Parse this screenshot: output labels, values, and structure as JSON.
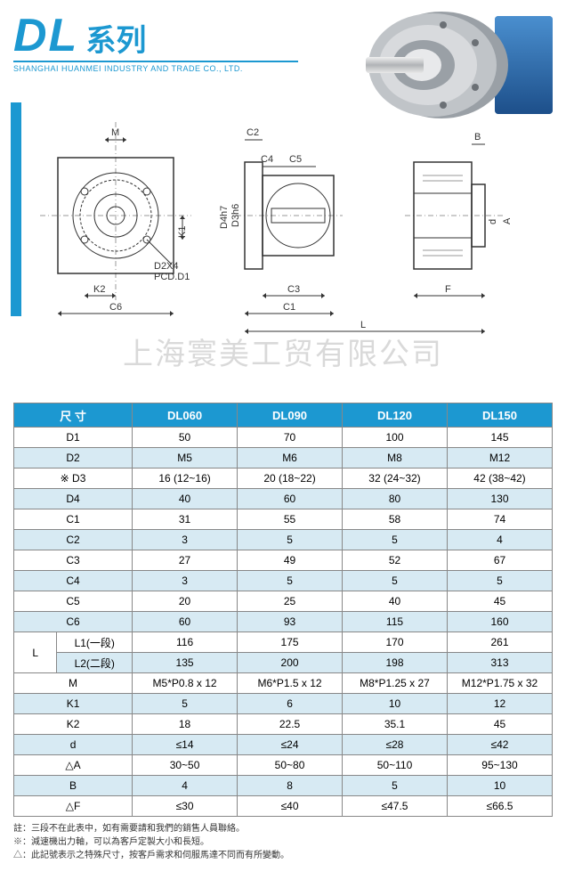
{
  "header": {
    "title_prefix": "DL",
    "title_series": "系列",
    "subtitle": "SHANGHAI HUANMEI INDUSTRY AND TRADE CO., LTD.",
    "watermark": "上海寰美工贸有限公司"
  },
  "diagram_labels": {
    "M": "M",
    "C2": "C2",
    "B": "B",
    "C4": "C4",
    "C5": "C5",
    "D4h7": "D4h7",
    "D3h6": "D3h6",
    "K1": "K1",
    "d": "d",
    "A": "A",
    "D2X4": "D2X4",
    "PCD_D1": "PCD.D1",
    "K2": "K2",
    "C3": "C3",
    "F": "F",
    "C6": "C6",
    "C1": "C1",
    "L": "L"
  },
  "table": {
    "header": [
      "尺 寸",
      "DL060",
      "DL090",
      "DL120",
      "DL150"
    ],
    "rows": [
      {
        "label": "D1",
        "v": [
          "50",
          "70",
          "100",
          "145"
        ]
      },
      {
        "label": "D2",
        "v": [
          "M5",
          "M6",
          "M8",
          "M12"
        ]
      },
      {
        "label": "※ D3",
        "v": [
          "16 (12~16)",
          "20 (18~22)",
          "32 (24~32)",
          "42 (38~42)"
        ]
      },
      {
        "label": "D4",
        "v": [
          "40",
          "60",
          "80",
          "130"
        ]
      },
      {
        "label": "C1",
        "v": [
          "31",
          "55",
          "58",
          "74"
        ]
      },
      {
        "label": "C2",
        "v": [
          "3",
          "5",
          "5",
          "4"
        ]
      },
      {
        "label": "C3",
        "v": [
          "27",
          "49",
          "52",
          "67"
        ]
      },
      {
        "label": "C4",
        "v": [
          "3",
          "5",
          "5",
          "5"
        ]
      },
      {
        "label": "C5",
        "v": [
          "20",
          "25",
          "40",
          "45"
        ]
      },
      {
        "label": "C6",
        "v": [
          "60",
          "93",
          "115",
          "160"
        ]
      }
    ],
    "L_group": {
      "label": "L",
      "sub": [
        {
          "label": "L1(一段)",
          "v": [
            "116",
            "175",
            "170",
            "261"
          ]
        },
        {
          "label": "L2(二段)",
          "v": [
            "135",
            "200",
            "198",
            "313"
          ]
        }
      ]
    },
    "rows2": [
      {
        "label": "M",
        "v": [
          "M5*P0.8 x 12",
          "M6*P1.5 x 12",
          "M8*P1.25 x 27",
          "M12*P1.75 x 32"
        ]
      },
      {
        "label": "K1",
        "v": [
          "5",
          "6",
          "10",
          "12"
        ]
      },
      {
        "label": "K2",
        "v": [
          "18",
          "22.5",
          "35.1",
          "45"
        ]
      },
      {
        "label": "d",
        "v": [
          "≤14",
          "≤24",
          "≤28",
          "≤42"
        ]
      },
      {
        "label": "△A",
        "v": [
          "30~50",
          "50~80",
          "50~110",
          "95~130"
        ]
      },
      {
        "label": "B",
        "v": [
          "4",
          "8",
          "5",
          "10"
        ]
      },
      {
        "label": "△F",
        "v": [
          "≤30",
          "≤40",
          "≤47.5",
          "≤66.5"
        ]
      }
    ]
  },
  "footnotes": [
    "註：三段不在此表中，如有需要請和我們的銷售人員聯絡。",
    "※：減速機出力軸，可以為客戶定製大小和長短。",
    "△：此記號表示之特殊尺寸，按客戶需求和伺服馬達不同而有所變動。"
  ],
  "styling": {
    "accent_color": "#1c98d1",
    "stripe_color": "#d7eaf3",
    "border_color": "#888888",
    "background": "#ffffff",
    "watermark_color": "rgba(0,0,0,0.15)",
    "title_fontsize": 52,
    "series_fontsize": 34,
    "subtitle_fontsize": 9,
    "table_fontsize": 12,
    "footnote_fontsize": 10
  }
}
